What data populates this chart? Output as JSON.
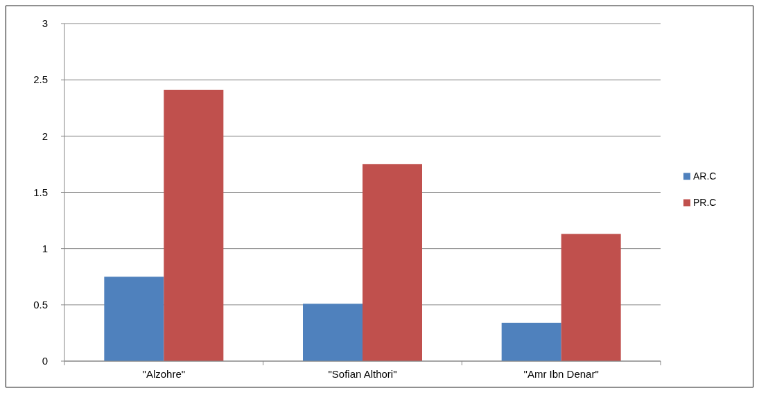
{
  "chart_data": {
    "type": "bar",
    "categories": [
      "\"Alzohre\"",
      "\"Sofian Althori\"",
      "\"Amr Ibn Denar\""
    ],
    "series": [
      {
        "name": "AR.C",
        "color": "#4f81bd",
        "values": [
          0.75,
          0.51,
          0.34
        ]
      },
      {
        "name": "PR.C",
        "color": "#c0504d",
        "values": [
          2.41,
          1.75,
          1.13
        ]
      }
    ],
    "ylim": [
      0,
      3
    ],
    "yticks": [
      0,
      0.5,
      1,
      1.5,
      2,
      2.5,
      3
    ],
    "grid": "y",
    "legend": "right"
  }
}
